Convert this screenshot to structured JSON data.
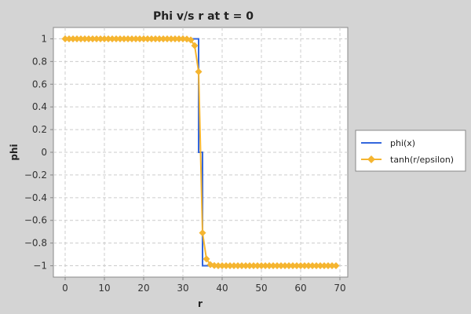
{
  "chart_data": {
    "type": "line",
    "title": "Phi v/s r at t = 0",
    "xlabel": "r",
    "ylabel": "phi",
    "xlim": [
      -3,
      72
    ],
    "ylim": [
      -1.1,
      1.1
    ],
    "x_ticks": [
      0,
      10,
      20,
      30,
      40,
      50,
      60,
      70
    ],
    "y_ticks": [
      1,
      0.8,
      0.6,
      0.4,
      0.2,
      0,
      -0.2,
      -0.4,
      -0.6,
      -0.8,
      -1
    ],
    "y_tick_labels": [
      "1",
      "0.8",
      "0.6",
      "0.4",
      "0.2",
      "0",
      "−0.2",
      "−0.4",
      "−0.6",
      "−0.8",
      "−1"
    ],
    "grid": true,
    "legend_position": "right",
    "series": [
      {
        "name": "phi(x)",
        "color": "#3366dd",
        "marker": "none",
        "step": true,
        "x": [
          0,
          34,
          34,
          35,
          35,
          69
        ],
        "y": [
          1,
          1,
          0,
          0,
          -1,
          -1
        ]
      },
      {
        "name": "tanh(r/epsilon)",
        "color": "#f5b530",
        "marker": "diamond",
        "x": [
          0,
          1,
          2,
          3,
          4,
          5,
          6,
          7,
          8,
          9,
          10,
          11,
          12,
          13,
          14,
          15,
          16,
          17,
          18,
          19,
          20,
          21,
          22,
          23,
          24,
          25,
          26,
          27,
          28,
          29,
          30,
          31,
          32,
          33,
          34,
          35,
          36,
          37,
          38,
          39,
          40,
          41,
          42,
          43,
          44,
          45,
          46,
          47,
          48,
          49,
          50,
          51,
          52,
          53,
          54,
          55,
          56,
          57,
          58,
          59,
          60,
          61,
          62,
          63,
          64,
          65,
          66,
          67,
          68,
          69
        ],
        "y": [
          1,
          1,
          1,
          1,
          1,
          1,
          1,
          1,
          1,
          1,
          1,
          1,
          1,
          1,
          1,
          1,
          1,
          1,
          1,
          1,
          1,
          1,
          1,
          1,
          1,
          1,
          1,
          1,
          1,
          1,
          1,
          0.998,
          0.99,
          0.94,
          0.71,
          -0.71,
          -0.94,
          -0.99,
          -0.998,
          -1,
          -1,
          -1,
          -1,
          -1,
          -1,
          -1,
          -1,
          -1,
          -1,
          -1,
          -1,
          -1,
          -1,
          -1,
          -1,
          -1,
          -1,
          -1,
          -1,
          -1,
          -1,
          -1,
          -1,
          -1,
          -1,
          -1,
          -1,
          -1,
          -1,
          -1
        ]
      }
    ]
  }
}
